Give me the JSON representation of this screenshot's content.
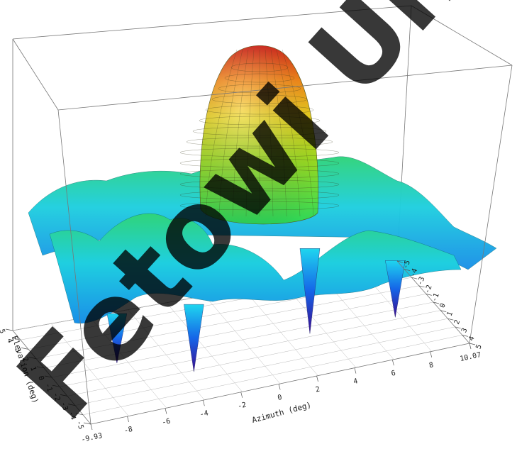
{
  "chart_data": {
    "type": "surface3d",
    "title": "",
    "xlabel": "Azimuth (deg)",
    "ylabel": "Elevation (deg)",
    "zlabel": "",
    "x_ticks": [
      "-9.93",
      "-8",
      "-6",
      "-4",
      "-2",
      "0",
      "2",
      "4",
      "6",
      "8",
      "10.07"
    ],
    "y_ticks": [
      "-5",
      "-4",
      "-3",
      "-2",
      "-1",
      "0",
      "1",
      "2",
      "3",
      "4",
      "5"
    ],
    "back_y_ticks": [
      "-5",
      "-4",
      "-3",
      "-2",
      "-1",
      "0",
      "1",
      "2",
      "3",
      "4",
      "5"
    ],
    "xlim": [
      -9.93,
      10.07
    ],
    "ylim": [
      -5,
      5
    ],
    "zlim": [
      -40,
      0
    ],
    "colormap": [
      "#3a0a8f",
      "#1565e8",
      "#1fd6ef",
      "#2ad65a",
      "#d8ee1c",
      "#ff8c10",
      "#d91a0f"
    ],
    "surface": {
      "description": "Antenna radiation pattern: main lobe with side lobes and deep nulls",
      "main_lobe_peak_db": 0,
      "side_lobe_level_db": -22,
      "null_depth_db": -40,
      "null_azimuths_deg": [
        -7,
        -3.2,
        3.6,
        7.5
      ]
    },
    "grid": true,
    "watermark": "Fetowi Univer"
  }
}
